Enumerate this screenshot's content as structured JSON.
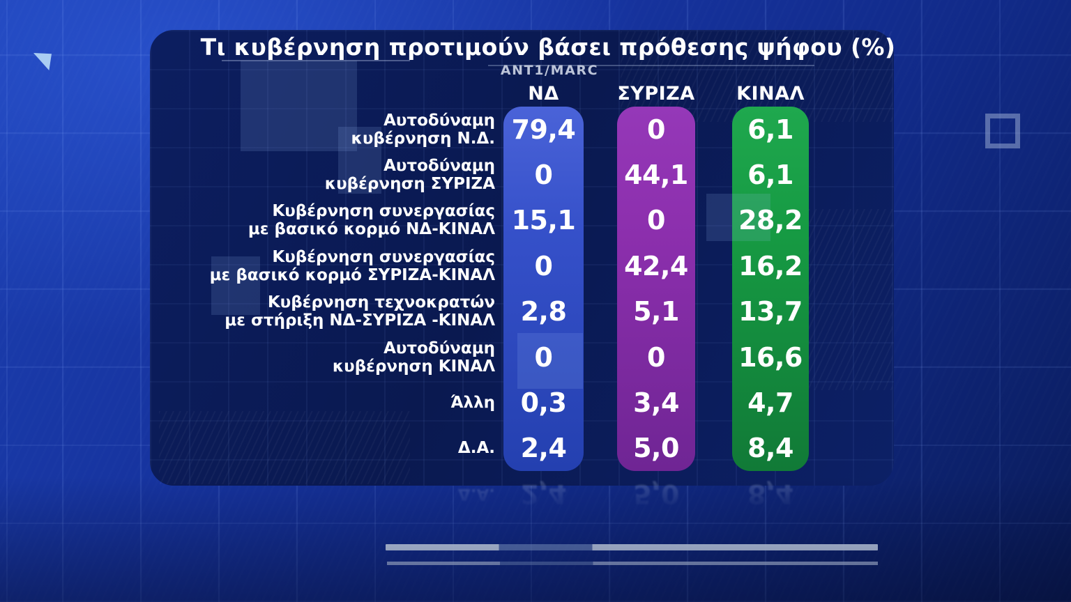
{
  "header": {
    "title": "Τι κυβέρνηση προτιμούν βάσει πρόθεσης ψήφου (%)",
    "source": "ANT1/MARC"
  },
  "chart_data": {
    "type": "table",
    "title": "Τι κυβέρνηση προτιμούν βάσει πρόθεσης ψήφου (%)",
    "subtitle": "ANT1/MARC",
    "unit": "%",
    "legend_position": "top",
    "columns": [
      {
        "label": "ΝΔ",
        "color_light": "#4a63d8",
        "color": "#3550c9",
        "color_dark": "#2440b0"
      },
      {
        "label": "ΣΥΡΙΖΑ",
        "color_light": "#9538b8",
        "color": "#8c2fad",
        "color_dark": "#6f2594"
      },
      {
        "label": "ΚΙΝΑΛ",
        "color_light": "#1fa84e",
        "color": "#169a43",
        "color_dark": "#117a37"
      }
    ],
    "rows": [
      {
        "label_lines": [
          "Αυτοδύναμη",
          "κυβέρνηση Ν.Δ."
        ],
        "values": [
          "79,4",
          "0",
          "6,1"
        ]
      },
      {
        "label_lines": [
          "Αυτοδύναμη",
          "κυβέρνηση ΣΥΡΙΖΑ"
        ],
        "values": [
          "0",
          "44,1",
          "6,1"
        ]
      },
      {
        "label_lines": [
          "Κυβέρνηση συνεργασίας",
          "με βασικό κορμό ΝΔ-ΚΙΝΑΛ"
        ],
        "values": [
          "15,1",
          "0",
          "28,2"
        ]
      },
      {
        "label_lines": [
          "Κυβέρνηση συνεργασίας",
          "με βασικό κορμό ΣΥΡΙΖΑ-ΚΙΝΑΛ"
        ],
        "values": [
          "0",
          "42,4",
          "16,2"
        ]
      },
      {
        "label_lines": [
          "Κυβέρνηση τεχνοκρατών",
          "με στήριξη ΝΔ-ΣΥΡΙΖΑ -ΚΙΝΑΛ"
        ],
        "values": [
          "2,8",
          "5,1",
          "13,7"
        ]
      },
      {
        "label_lines": [
          "Αυτοδύναμη",
          "κυβέρνηση ΚΙΝΑΛ"
        ],
        "values": [
          "0",
          "0",
          "16,6"
        ]
      },
      {
        "label_lines": [
          "Άλλη"
        ],
        "values": [
          "0,3",
          "3,4",
          "4,7"
        ]
      },
      {
        "label_lines": [
          "Δ.Α."
        ],
        "values": [
          "2,4",
          "5,0",
          "8,4"
        ]
      }
    ]
  },
  "colors": {
    "background_blue": "#16339e",
    "panel_navy": "#0a1950",
    "nd_blue": "#3550c9",
    "syriza_purple": "#8c2fad",
    "kinal_green": "#169a43",
    "text": "#ffffff",
    "source_text": "#bcc4d8"
  }
}
